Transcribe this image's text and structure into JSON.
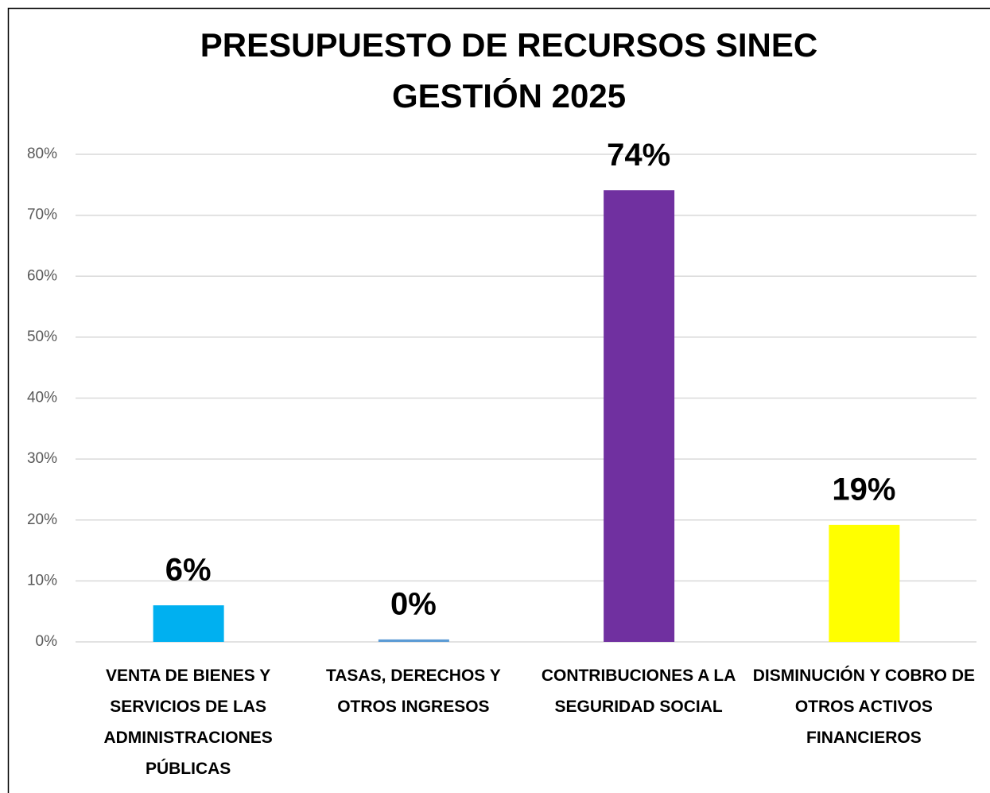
{
  "chart_data": {
    "type": "bar",
    "title": [
      "PRESUPUESTO DE RECURSOS SINEC",
      "GESTIÓN 2025"
    ],
    "categories": [
      "VENTA DE BIENES Y SERVICIOS DE LAS ADMINISTRACIONES PÚBLICAS",
      "TASAS, DERECHOS Y OTROS INGRESOS",
      "CONTRIBUCIONES A LA SEGURIDAD SOCIAL",
      "DISMINUCIÓN Y COBRO DE OTROS ACTIVOS FINANCIEROS"
    ],
    "values": [
      6.0,
      0.4,
      74.1,
      19.2
    ],
    "value_labels": [
      "6%",
      "0%",
      "74%",
      "19%"
    ],
    "colors": [
      "#00b0f0",
      "#5b9bd5",
      "#7030a0",
      "#ffff00"
    ],
    "ylim": [
      0,
      80
    ],
    "yticks": [
      {
        "value": 0,
        "label": "0%"
      },
      {
        "value": 10,
        "label": "10%"
      },
      {
        "value": 20,
        "label": "20%"
      },
      {
        "value": 30,
        "label": "30%"
      },
      {
        "value": 40,
        "label": "40%"
      },
      {
        "value": 50,
        "label": "50%"
      },
      {
        "value": 60,
        "label": "60%"
      },
      {
        "value": 70,
        "label": "70%"
      },
      {
        "value": 80,
        "label": "80%"
      }
    ],
    "grid": true
  }
}
